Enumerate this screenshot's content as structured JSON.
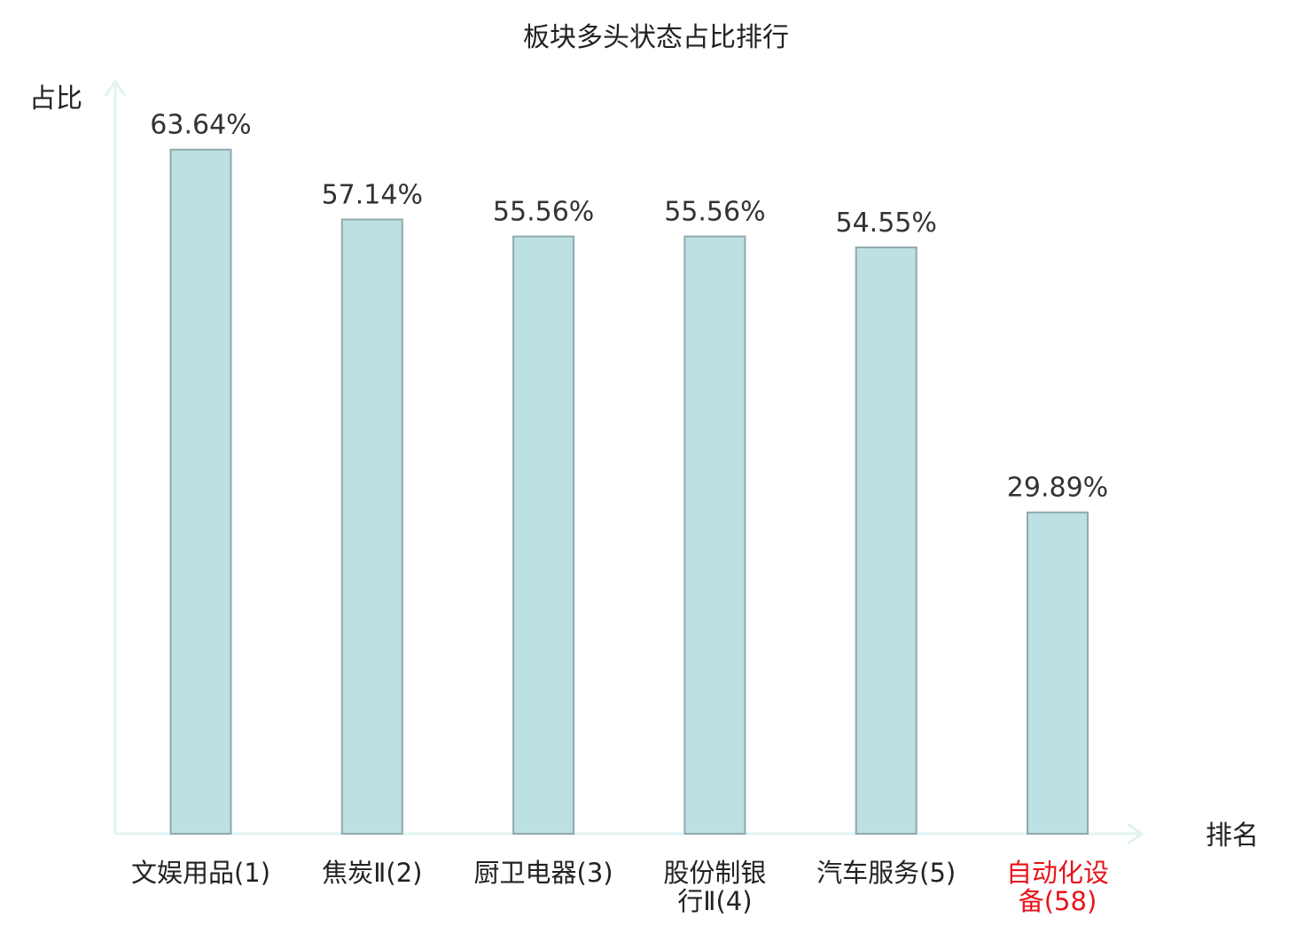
{
  "chart_data": {
    "type": "bar",
    "title": "板块多头状态占比排行",
    "xlabel": "排名",
    "ylabel": "占比",
    "ylim": [
      0,
      70
    ],
    "grid": false,
    "categories": [
      [
        "文娱用品(1)"
      ],
      [
        "焦炭Ⅱ(2)"
      ],
      [
        "厨卫电器(3)"
      ],
      [
        "股份制银",
        "行Ⅱ(4)"
      ],
      [
        "汽车服务(5)"
      ],
      [
        "自动化设",
        "备(58)"
      ]
    ],
    "values": [
      63.64,
      57.14,
      55.56,
      55.56,
      54.55,
      29.89
    ],
    "value_labels": [
      "63.64%",
      "57.14%",
      "55.56%",
      "55.56%",
      "54.55%",
      "29.89%"
    ],
    "highlight_index": 5
  },
  "colors": {
    "bar_fill": "#bde0e3",
    "bar_stroke": "#8fa9ad",
    "axis": "#e0f3f1",
    "text": "#222222",
    "value_text": "#333333",
    "highlight_text": "#e8141b"
  }
}
